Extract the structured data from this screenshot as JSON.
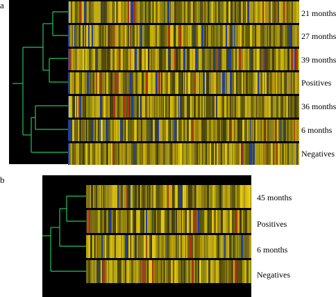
{
  "panels": [
    {
      "letter": "a",
      "labels": [
        "21 months",
        "27 months",
        "39 months",
        "Positives",
        "36 months",
        "6 months",
        "Negatives"
      ]
    },
    {
      "letter": "b",
      "labels": [
        "45 months",
        "Positives",
        "6 months",
        "Negatives"
      ]
    }
  ],
  "colors": {
    "background": "#000000",
    "dendrogram": "#22c55e",
    "yellow": "#f5e000",
    "blue": "#2040a0",
    "red": "#b03018"
  }
}
